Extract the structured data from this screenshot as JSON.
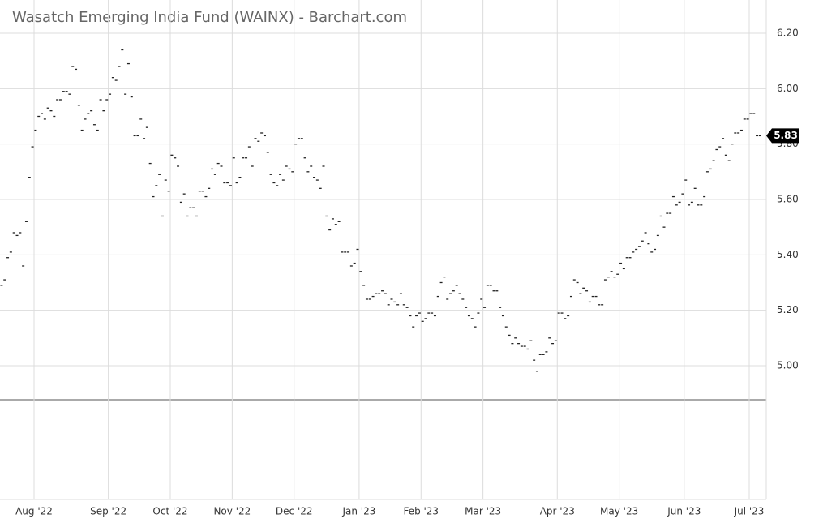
{
  "chart_data": {
    "type": "scatter",
    "title": "Wasatch Emerging India Fund (WAINX) - Barchart.com",
    "values": [
      5.29,
      5.31,
      5.39,
      5.41,
      5.48,
      5.47,
      5.48,
      5.36,
      5.52,
      5.68,
      5.79,
      5.85,
      5.9,
      5.91,
      5.89,
      5.93,
      5.92,
      5.9,
      5.96,
      5.96,
      5.99,
      5.99,
      5.98,
      6.08,
      6.07,
      5.94,
      5.85,
      5.89,
      5.91,
      5.92,
      5.87,
      5.85,
      5.96,
      5.92,
      5.96,
      5.98,
      6.04,
      6.03,
      6.08,
      6.14,
      5.98,
      6.09,
      5.97,
      5.83,
      5.83,
      5.89,
      5.82,
      5.86,
      5.73,
      5.61,
      5.65,
      5.69,
      5.54,
      5.67,
      5.63,
      5.76,
      5.75,
      5.72,
      5.59,
      5.62,
      5.54,
      5.57,
      5.57,
      5.54,
      5.63,
      5.63,
      5.61,
      5.64,
      5.71,
      5.69,
      5.73,
      5.72,
      5.66,
      5.66,
      5.65,
      5.75,
      5.66,
      5.68,
      5.75,
      5.75,
      5.79,
      5.72,
      5.82,
      5.81,
      5.84,
      5.83,
      5.77,
      5.69,
      5.66,
      5.65,
      5.69,
      5.67,
      5.72,
      5.71,
      5.7,
      5.8,
      5.82,
      5.82,
      5.75,
      5.7,
      5.72,
      5.68,
      5.67,
      5.64,
      5.72,
      5.54,
      5.49,
      5.53,
      5.51,
      5.52,
      5.41,
      5.41,
      5.41,
      5.36,
      5.37,
      5.42,
      5.34,
      5.29,
      5.24,
      5.24,
      5.25,
      5.26,
      5.26,
      5.27,
      5.26,
      5.22,
      5.24,
      5.23,
      5.22,
      5.26,
      5.22,
      5.21,
      5.18,
      5.14,
      5.18,
      5.19,
      5.16,
      5.17,
      5.19,
      5.19,
      5.18,
      5.25,
      5.3,
      5.32,
      5.24,
      5.26,
      5.27,
      5.29,
      5.26,
      5.24,
      5.21,
      5.18,
      5.17,
      5.14,
      5.19,
      5.24,
      5.21,
      5.29,
      5.29,
      5.27,
      5.27,
      5.21,
      5.18,
      5.14,
      5.11,
      5.08,
      5.1,
      5.08,
      5.07,
      5.07,
      5.06,
      5.09,
      5.02,
      4.98,
      5.04,
      5.04,
      5.05,
      5.1,
      5.08,
      5.09,
      5.19,
      5.19,
      5.17,
      5.18,
      5.25,
      5.31,
      5.3,
      5.26,
      5.28,
      5.27,
      5.23,
      5.25,
      5.25,
      5.22,
      5.22,
      5.31,
      5.32,
      5.34,
      5.32,
      5.33,
      5.37,
      5.35,
      5.39,
      5.39,
      5.41,
      5.42,
      5.43,
      5.45,
      5.48,
      5.44,
      5.41,
      5.42,
      5.47,
      5.54,
      5.5,
      5.55,
      5.55,
      5.61,
      5.58,
      5.59,
      5.62,
      5.67,
      5.58,
      5.59,
      5.64,
      5.58,
      5.58,
      5.61,
      5.7,
      5.71,
      5.74,
      5.78,
      5.79,
      5.82,
      5.76,
      5.74,
      5.8,
      5.84,
      5.84,
      5.85,
      5.89,
      5.89,
      5.91,
      5.91,
      5.83,
      5.83
    ],
    "last_value_label": "5.83",
    "color": "#222222",
    "xlim": [
      -0.5,
      247
    ],
    "xticks": [
      {
        "value": 10.5,
        "label": "Aug '22"
      },
      {
        "value": 34.5,
        "label": "Sep '22"
      },
      {
        "value": 54.5,
        "label": "Oct '22"
      },
      {
        "value": 74.5,
        "label": "Nov '22"
      },
      {
        "value": 94.5,
        "label": "Dec '22"
      },
      {
        "value": 115.5,
        "label": "Jan '23"
      },
      {
        "value": 135.5,
        "label": "Feb '23"
      },
      {
        "value": 155.5,
        "label": "Mar '23"
      },
      {
        "value": 179.5,
        "label": "Apr '23"
      },
      {
        "value": 199.5,
        "label": "May '23"
      },
      {
        "value": 220.5,
        "label": "Jun '23"
      },
      {
        "value": 241.5,
        "label": "Jul '23"
      }
    ],
    "ylim": [
      4.877,
      6.32
    ],
    "yticks": [
      {
        "value": 5,
        "label": "5.00"
      },
      {
        "value": 5.2,
        "label": "5.20"
      },
      {
        "value": 5.4,
        "label": "5.40"
      },
      {
        "value": 5.6,
        "label": "5.60"
      },
      {
        "value": 5.8,
        "label": "5.80"
      },
      {
        "value": 6,
        "label": "6.00"
      },
      {
        "value": 6.2,
        "label": "6.20"
      }
    ],
    "grid": true
  }
}
